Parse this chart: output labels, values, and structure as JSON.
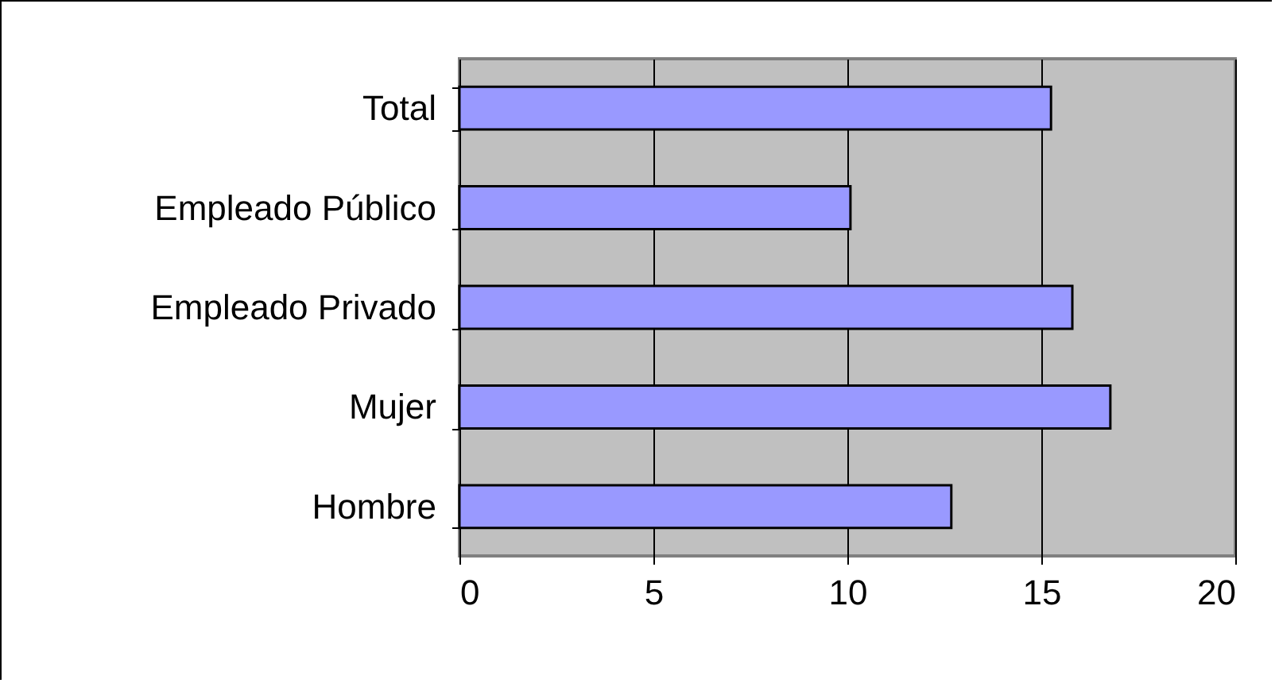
{
  "chart_data": {
    "type": "bar",
    "orientation": "horizontal",
    "categories": [
      "Total",
      "Empleado Público",
      "Empleado Privado",
      "Mujer",
      "Hombre"
    ],
    "values": [
      15.25,
      10.08,
      15.8,
      16.78,
      12.68
    ],
    "color": "#9999ff",
    "xlim": [
      0,
      20
    ],
    "xticks": [
      0,
      5,
      10,
      15,
      20
    ],
    "grid": "x"
  }
}
